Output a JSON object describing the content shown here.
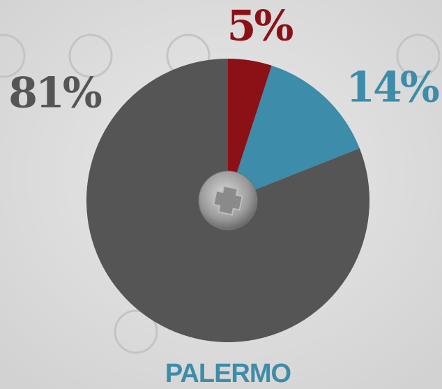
{
  "chart_data": {
    "type": "pie",
    "title": "PALERMO",
    "categories": [
      null,
      null,
      null
    ],
    "values": [
      5,
      14,
      81
    ],
    "value_labels": [
      "5%",
      "14%",
      "81%"
    ],
    "colors": [
      "#8b1116",
      "#3d8ca9",
      "#555555"
    ],
    "title_color": "#3d8ca9"
  }
}
